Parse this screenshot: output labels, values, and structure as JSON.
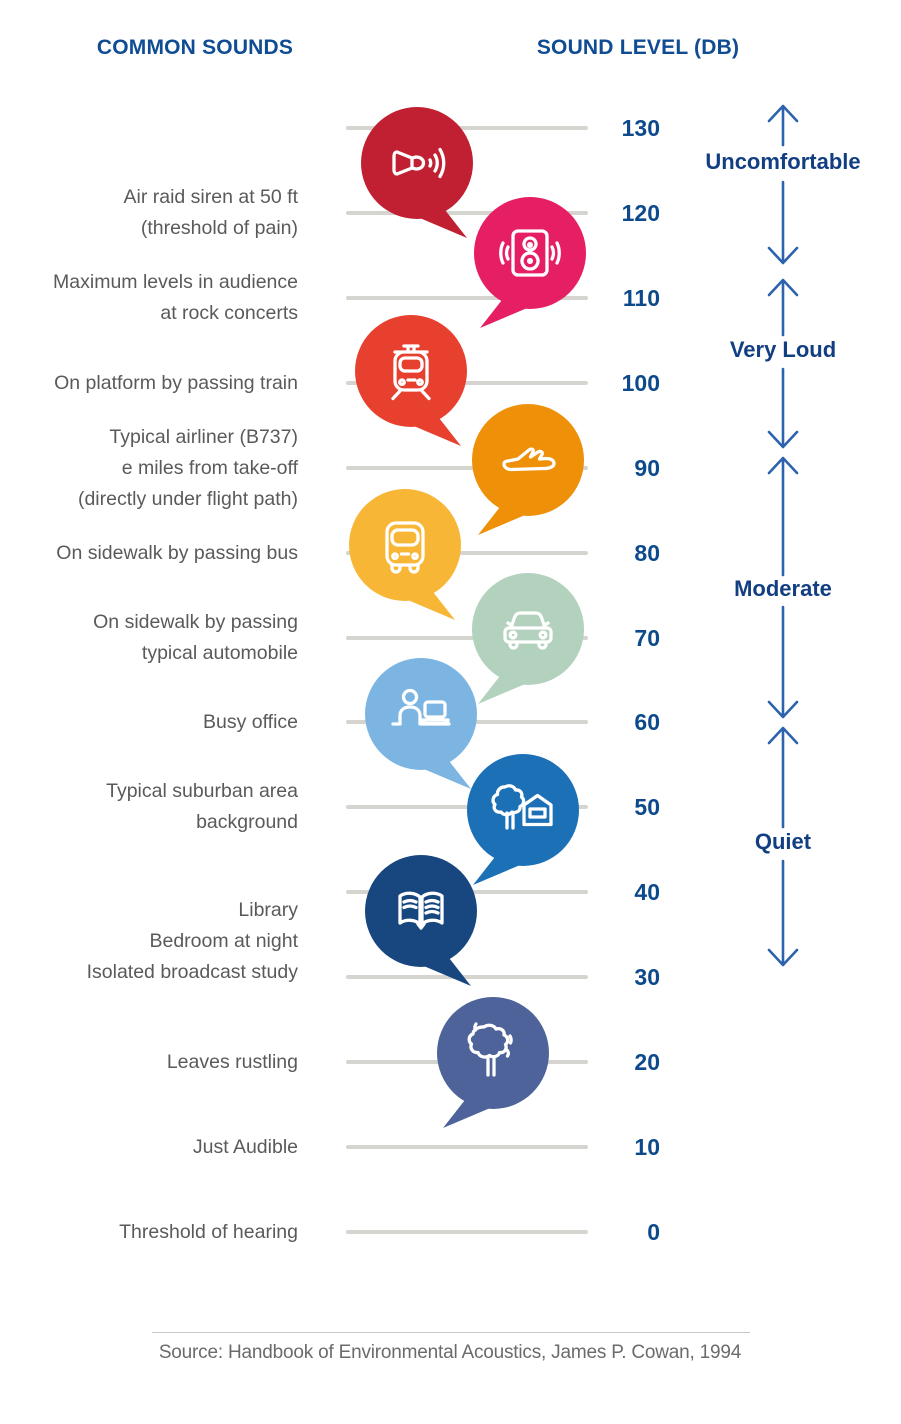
{
  "chart_data": {
    "type": "scatter",
    "title_left": "COMMON SOUNDS",
    "title_right": "SOUND LEVEL (DB)",
    "y_axis": {
      "unit": "dB",
      "min": 0,
      "max": 130,
      "tick_step": 10,
      "ticks": [
        130,
        120,
        110,
        100,
        90,
        80,
        70,
        60,
        50,
        40,
        30,
        20,
        10,
        0
      ]
    },
    "points": [
      {
        "label_lines": [
          "Air raid siren at 50 ft",
          "(threshold of pain)"
        ],
        "db": 120,
        "icon": "siren-horn-icon",
        "bubble_color": "#c02032",
        "column": "left"
      },
      {
        "label_lines": [
          "Maximum levels in audience",
          "at rock concerts"
        ],
        "db": 110,
        "icon": "loudspeaker-icon",
        "bubble_color": "#e61e64",
        "column": "right"
      },
      {
        "label_lines": [
          "On platform by passing train"
        ],
        "db": 100,
        "icon": "train-icon",
        "bubble_color": "#e8402f",
        "column": "left"
      },
      {
        "label_lines": [
          "Typical airliner (B737)",
          "e miles from take-off",
          "(directly under flight path)"
        ],
        "db": 90,
        "icon": "airplane-icon",
        "bubble_color": "#ee9109",
        "column": "right"
      },
      {
        "label_lines": [
          "On sidewalk by passing bus"
        ],
        "db": 80,
        "icon": "bus-icon",
        "bubble_color": "#f8b637",
        "column": "left"
      },
      {
        "label_lines": [
          "On sidewalk by passing",
          "typical automobile"
        ],
        "db": 70,
        "icon": "car-icon",
        "bubble_color": "#b2d2bd",
        "column": "right"
      },
      {
        "label_lines": [
          "Busy office"
        ],
        "db": 60,
        "icon": "office-worker-icon",
        "bubble_color": "#7cb5e2",
        "column": "left"
      },
      {
        "label_lines": [
          "Typical suburban area",
          "background"
        ],
        "db": 50,
        "icon": "suburb-house-tree-icon",
        "bubble_color": "#1b70b6",
        "column": "right"
      },
      {
        "label_lines": [
          "Library",
          "Bedroom at night",
          "Isolated broadcast study"
        ],
        "db": 40,
        "label_db": 34.3,
        "icon": "open-book-icon",
        "bubble_color": "#17477e",
        "column": "left"
      },
      {
        "label_lines": [
          "Leaves rustling"
        ],
        "db": 20,
        "icon": "rustling-tree-icon",
        "bubble_color": "#4d6399",
        "column": "right"
      },
      {
        "label_lines": [
          "Just Audible"
        ],
        "db": 10
      },
      {
        "label_lines": [
          "Threshold of hearing"
        ],
        "db": 0
      }
    ],
    "categories": [
      {
        "label": "Uncomfortable",
        "db_range": [
          112,
          130
        ]
      },
      {
        "label": "Very Loud",
        "db_range": [
          92,
          112
        ]
      },
      {
        "label": "Moderate",
        "db_range": [
          61,
          92
        ]
      },
      {
        "label": "Quiet",
        "db_range": [
          31,
          61
        ]
      }
    ],
    "source": "Source: Handbook of Environmental Acoustics, James P. Cowan, 1994",
    "colors": {
      "heading": "#0f4c93",
      "tick_label": "#0d4a8c",
      "sound_label": "#595a5c",
      "gridline": "#d6d4cf",
      "category_label": "#123f82",
      "arrow_rail": "#2d63ad",
      "source_text": "#6a6b6d"
    }
  }
}
